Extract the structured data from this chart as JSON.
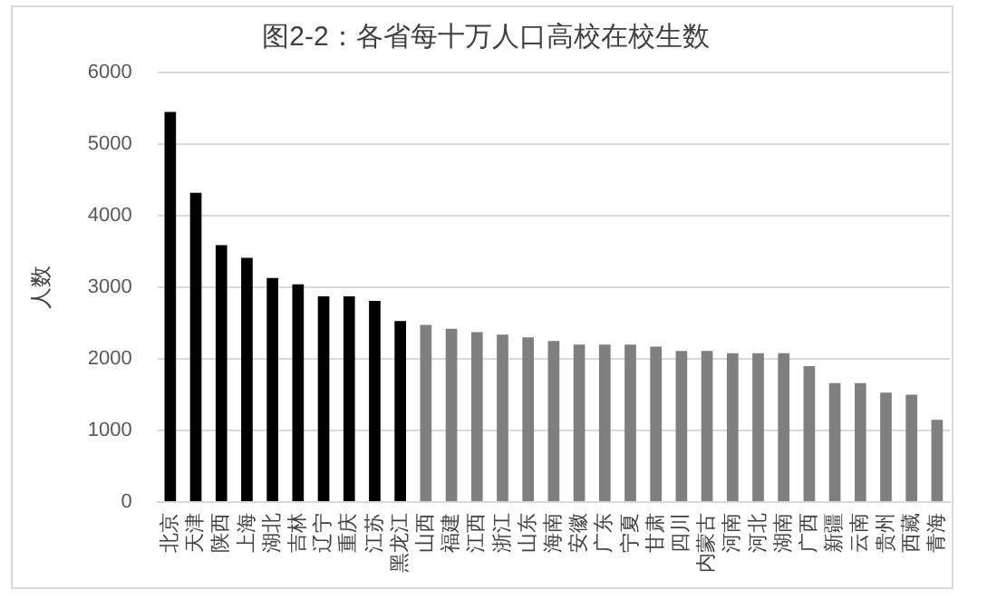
{
  "chart_data": {
    "type": "bar",
    "title": "图2-2：各省每十万人口高校在校生数",
    "ylabel": "人数",
    "categories": [
      "北京",
      "天津",
      "陕西",
      "上海",
      "湖北",
      "吉林",
      "辽宁",
      "重庆",
      "江苏",
      "黑龙江",
      "山西",
      "福建",
      "江西",
      "浙江",
      "山东",
      "海南",
      "安徽",
      "广东",
      "宁夏",
      "甘肃",
      "四川",
      "内蒙古",
      "河南",
      "河北",
      "湖南",
      "广西",
      "新疆",
      "云南",
      "贵州",
      "西藏",
      "青海"
    ],
    "values": [
      5450,
      4320,
      3590,
      3410,
      3130,
      3040,
      2875,
      2875,
      2810,
      2530,
      2475,
      2420,
      2375,
      2340,
      2300,
      2250,
      2200,
      2200,
      2200,
      2170,
      2110,
      2110,
      2080,
      2080,
      2080,
      1900,
      1660,
      1660,
      1530,
      1500,
      1150
    ],
    "colors": [
      "#000000",
      "#000000",
      "#000000",
      "#000000",
      "#000000",
      "#000000",
      "#000000",
      "#000000",
      "#000000",
      "#000000",
      "#7f7f7f",
      "#7f7f7f",
      "#7f7f7f",
      "#7f7f7f",
      "#7f7f7f",
      "#7f7f7f",
      "#7f7f7f",
      "#7f7f7f",
      "#7f7f7f",
      "#7f7f7f",
      "#7f7f7f",
      "#7f7f7f",
      "#7f7f7f",
      "#7f7f7f",
      "#7f7f7f",
      "#7f7f7f",
      "#7f7f7f",
      "#7f7f7f",
      "#7f7f7f",
      "#7f7f7f",
      "#7f7f7f"
    ],
    "ylim": [
      0,
      6000
    ],
    "yticks": [
      0,
      1000,
      2000,
      3000,
      4000,
      5000,
      6000
    ],
    "grid": "y",
    "legend": false
  }
}
